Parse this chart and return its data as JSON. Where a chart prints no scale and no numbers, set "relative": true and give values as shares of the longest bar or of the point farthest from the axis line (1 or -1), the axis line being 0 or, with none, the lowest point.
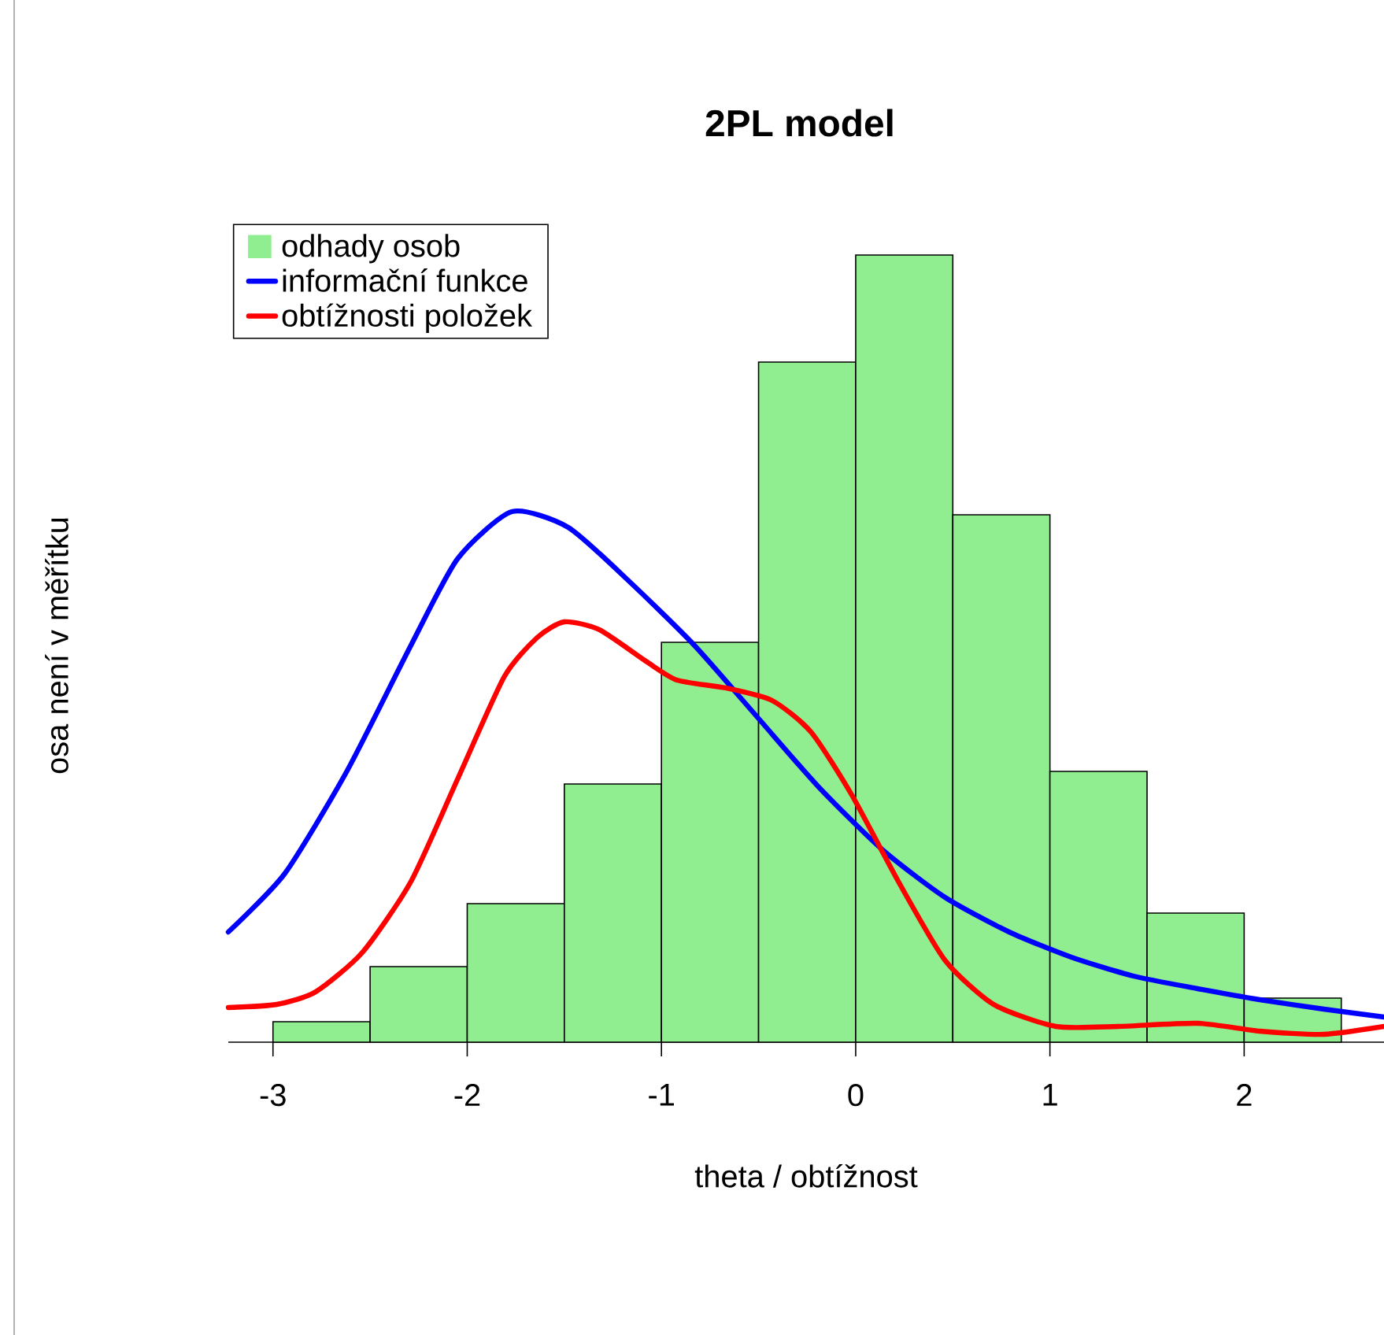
{
  "chart_data": {
    "type": "histogram",
    "title": "2PL model",
    "xlabel": "theta / obtížnost",
    "annotations": [
      "osa není v měřítku"
    ],
    "relative": true,
    "legend": "top left",
    "xlim": [
      -3.23,
      2.72
    ],
    "xticks": [
      -3,
      -2,
      -1,
      0,
      1,
      2
    ],
    "bins": [
      -3,
      -2.5,
      -2,
      -1.5,
      -1,
      -0.5,
      0,
      0.5,
      1,
      1.5,
      2,
      2.5
    ],
    "series": [
      {
        "name": "odhady osob",
        "type": "histogram",
        "color": "#90ee90",
        "values": [
          0.026,
          0.096,
          0.176,
          0.328,
          0.508,
          0.864,
          1,
          0.67,
          0.344,
          0.164,
          0.056
        ]
      },
      {
        "name": "informační funkce",
        "type": "line",
        "color": "#0000ff",
        "x": [
          -3.23,
          -2.94,
          -2.62,
          -2.29,
          -2.05,
          -1.77,
          -1.48,
          -1.16,
          -0.83,
          -0.51,
          -0.19,
          0.14,
          0.46,
          0.79,
          1.11,
          1.43,
          1.76,
          2.08,
          2.41,
          2.72
        ],
        "values": [
          0.14,
          0.214,
          0.344,
          0.504,
          0.614,
          0.674,
          0.654,
          0.584,
          0.504,
          0.414,
          0.324,
          0.244,
          0.184,
          0.14,
          0.108,
          0.084,
          0.068,
          0.054,
          0.042,
          0.032
        ]
      },
      {
        "name": "obtížnosti položek",
        "type": "line",
        "color": "#ff0000",
        "x": [
          -3.23,
          -2.98,
          -2.78,
          -2.54,
          -2.29,
          -2.05,
          -1.81,
          -1.64,
          -1.5,
          -1.32,
          -1.08,
          -0.92,
          -0.67,
          -0.43,
          -0.23,
          -0.02,
          0.22,
          0.46,
          0.71,
          1.03,
          1.35,
          1.76,
          2.08,
          2.41,
          2.72
        ],
        "values": [
          0.044,
          0.048,
          0.064,
          0.114,
          0.204,
          0.334,
          0.464,
          0.514,
          0.534,
          0.524,
          0.484,
          0.46,
          0.45,
          0.434,
          0.394,
          0.314,
          0.204,
          0.104,
          0.048,
          0.02,
          0.02,
          0.024,
          0.014,
          0.01,
          0.02
        ]
      }
    ]
  }
}
